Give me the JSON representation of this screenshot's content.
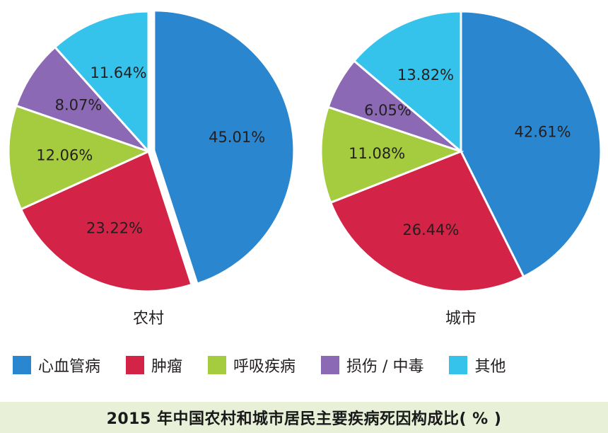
{
  "colors": {
    "心血管病": "#2a86cf",
    "肿瘤": "#d32447",
    "呼吸疾病": "#a5cb3f",
    "损伤 / 中毒": "#8b69b4",
    "其他": "#35c3ec"
  },
  "chart_data": [
    {
      "type": "pie",
      "title": "农村",
      "slices": [
        {
          "label": "心血管病",
          "value": 45.01,
          "text": "45.01%"
        },
        {
          "label": "肿瘤",
          "value": 23.22,
          "text": "23.22%"
        },
        {
          "label": "呼吸疾病",
          "value": 12.06,
          "text": "12.06%"
        },
        {
          "label": "损伤 / 中毒",
          "value": 8.07,
          "text": "8.07%"
        },
        {
          "label": "其他",
          "value": 11.64,
          "text": "11.64%"
        }
      ],
      "exploded": "心血管病"
    },
    {
      "type": "pie",
      "title": "城市",
      "slices": [
        {
          "label": "心血管病",
          "value": 42.61,
          "text": "42.61%"
        },
        {
          "label": "肿瘤",
          "value": 26.44,
          "text": "26.44%"
        },
        {
          "label": "呼吸疾病",
          "value": 11.08,
          "text": "11.08%"
        },
        {
          "label": "损伤 / 中毒",
          "value": 6.05,
          "text": "6.05%"
        },
        {
          "label": "其他",
          "value": 13.82,
          "text": "13.82%"
        }
      ]
    }
  ],
  "legend": {
    "items": [
      {
        "label": "心血管病"
      },
      {
        "label": "肿瘤"
      },
      {
        "label": "呼吸疾病"
      },
      {
        "label": "损伤 / 中毒"
      },
      {
        "label": "其他"
      }
    ]
  },
  "caption": "2015 年中国农村和城市居民主要疾病死因构成比( % )"
}
